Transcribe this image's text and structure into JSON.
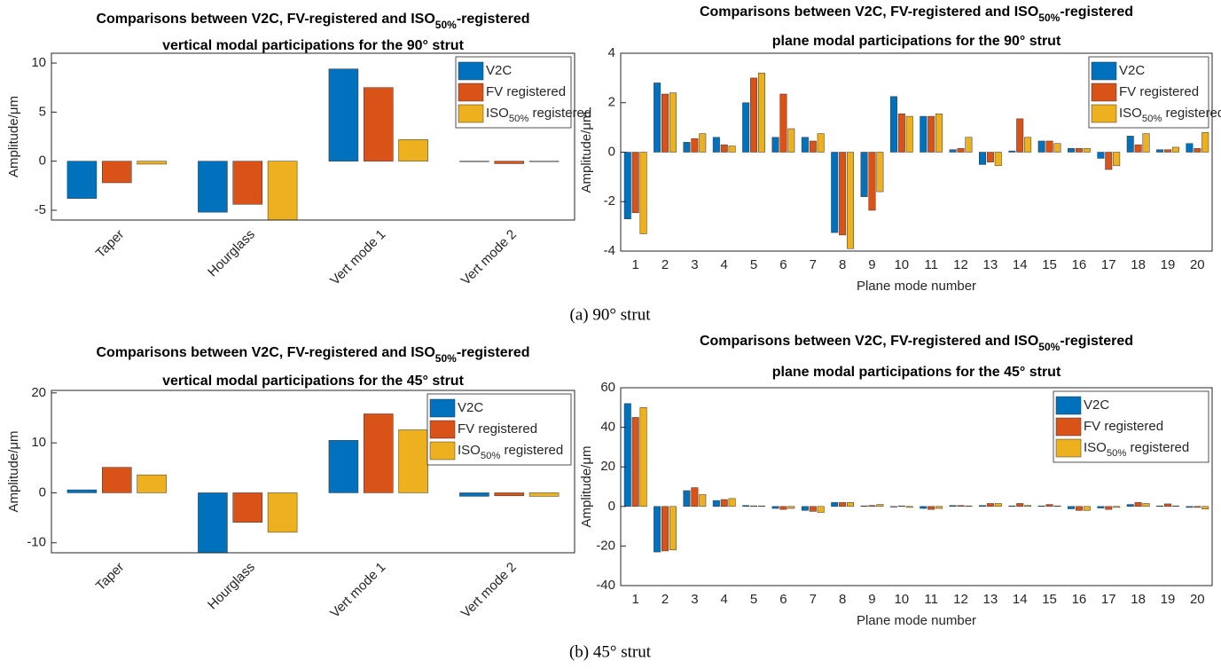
{
  "captions": [
    "(a) 90° strut",
    "(b) 45° strut"
  ],
  "chart_data": [
    {
      "type": "bar",
      "title": [
        [
          "Comparisons between V2C, FV-registered and ISO",
          "50%",
          "-registered"
        ],
        [
          "vertical modal participations for the 90° strut"
        ]
      ],
      "ylabel": "Amplitude/μm",
      "categories": [
        "Taper",
        "Hourglass",
        "Vert mode 1",
        "Vert mode 2"
      ],
      "ylim": [
        -6,
        11
      ],
      "yticks": [
        -5,
        0,
        5,
        10
      ],
      "legend": "upper right",
      "series": [
        {
          "name": "V2C",
          "color": "#0072BD",
          "values": [
            -3.8,
            -5.2,
            9.4,
            -0.05
          ]
        },
        {
          "name": "FV registered",
          "color": "#D95319",
          "values": [
            -2.2,
            -4.4,
            7.5,
            -0.25
          ]
        },
        {
          "name": [
            "ISO",
            "50%",
            " registered"
          ],
          "color": "#EDB120",
          "values": [
            -0.3,
            -6,
            2.2,
            -0.05
          ]
        }
      ]
    },
    {
      "type": "bar",
      "title": [
        [
          "Comparisons between V2C, FV-registered and ISO",
          "50%",
          "-registered"
        ],
        [
          "plane modal participations for the 90° strut"
        ]
      ],
      "ylabel": "Amplitude/μm",
      "xlabel": "Plane mode number",
      "categories": [
        "1",
        "2",
        "3",
        "4",
        "5",
        "6",
        "7",
        "8",
        "9",
        "10",
        "11",
        "12",
        "13",
        "14",
        "15",
        "16",
        "17",
        "18",
        "19",
        "20"
      ],
      "ylim": [
        -4,
        4
      ],
      "yticks": [
        -4,
        -2,
        0,
        2,
        4
      ],
      "legend": "upper right",
      "series": [
        {
          "name": "V2C",
          "color": "#0072BD",
          "values": [
            -2.7,
            2.8,
            0.4,
            0.6,
            2.0,
            0.6,
            0.6,
            -3.25,
            -1.8,
            2.25,
            1.45,
            0.1,
            -0.5,
            0.05,
            0.45,
            0.15,
            -0.25,
            0.65,
            0.1,
            0.35
          ]
        },
        {
          "name": "FV registered",
          "color": "#D95319",
          "values": [
            -2.45,
            2.35,
            0.55,
            0.3,
            3.0,
            2.35,
            0.45,
            -3.35,
            -2.35,
            1.55,
            1.45,
            0.15,
            -0.4,
            1.35,
            0.45,
            0.15,
            -0.7,
            0.3,
            0.1,
            0.15
          ]
        },
        {
          "name": [
            "ISO",
            "50%",
            " registered"
          ],
          "color": "#EDB120",
          "values": [
            -3.3,
            2.4,
            0.75,
            0.25,
            3.2,
            0.95,
            0.75,
            -3.9,
            -1.6,
            1.45,
            1.55,
            0.6,
            -0.55,
            0.6,
            0.35,
            0.15,
            -0.55,
            0.75,
            0.2,
            0.8
          ]
        }
      ]
    },
    {
      "type": "bar",
      "title": [
        [
          "Comparisons between V2C, FV-registered and ISO",
          "50%",
          "-registered"
        ],
        [
          "vertical modal participations for the 45° strut"
        ]
      ],
      "ylabel": "Amplitude/μm",
      "categories": [
        "Taper",
        "Hourglass",
        "Vert mode 1",
        "Vert mode 2"
      ],
      "ylim": [
        -12,
        20.5
      ],
      "yticks": [
        -10,
        0,
        10,
        20
      ],
      "legend": "upper right",
      "series": [
        {
          "name": "V2C",
          "color": "#0072BD",
          "values": [
            0.6,
            -12,
            10.5,
            -0.7
          ]
        },
        {
          "name": "FV registered",
          "color": "#D95319",
          "values": [
            5.1,
            -5.9,
            15.8,
            -0.6
          ]
        },
        {
          "name": [
            "ISO",
            "50%",
            " registered"
          ],
          "color": "#EDB120",
          "values": [
            3.6,
            -7.9,
            12.6,
            -0.7
          ]
        }
      ]
    },
    {
      "type": "bar",
      "title": [
        [
          "Comparisons between V2C, FV-registered and ISO",
          "50%",
          "-registered"
        ],
        [
          "plane modal participations for the 45° strut"
        ]
      ],
      "ylabel": "Amplitude/μm",
      "xlabel": "Plane mode number",
      "categories": [
        "1",
        "2",
        "3",
        "4",
        "5",
        "6",
        "7",
        "8",
        "9",
        "10",
        "11",
        "12",
        "13",
        "14",
        "15",
        "16",
        "17",
        "18",
        "19",
        "20"
      ],
      "ylim": [
        -40,
        60
      ],
      "yticks": [
        -40,
        -20,
        0,
        20,
        40,
        60
      ],
      "legend": "upper right",
      "series": [
        {
          "name": "V2C",
          "color": "#0072BD",
          "values": [
            52,
            -23,
            8,
            3,
            0.5,
            -1,
            -2,
            2,
            0.3,
            -0.3,
            -1,
            0.5,
            0.5,
            0.3,
            0.3,
            -1.2,
            -0.8,
            1,
            0.3,
            -0.5
          ]
        },
        {
          "name": "FV registered",
          "color": "#D95319",
          "values": [
            45,
            -22.5,
            9.5,
            3.5,
            0.3,
            -1.5,
            -2.5,
            2,
            0.5,
            0.3,
            -1.5,
            0.5,
            1.5,
            1.5,
            1,
            -2,
            -1.5,
            2,
            1.3,
            -0.5
          ]
        },
        {
          "name": [
            "ISO",
            "50%",
            " registered"
          ],
          "color": "#EDB120",
          "values": [
            50,
            -22,
            6,
            4,
            0.3,
            -1,
            -3,
            2,
            1,
            -0.5,
            -1,
            0.3,
            1.5,
            0.5,
            0.3,
            -2,
            -0.5,
            1.5,
            0.3,
            -1.3
          ]
        }
      ]
    }
  ]
}
